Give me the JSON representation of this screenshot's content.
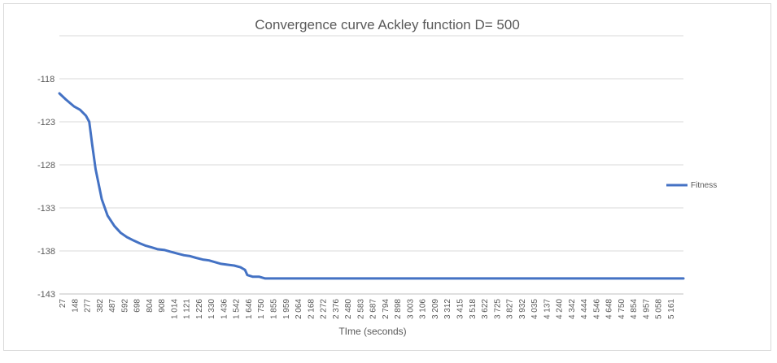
{
  "chart_data": {
    "type": "line",
    "title": "Convergence curve Ackley function D= 500",
    "xlabel": "TIme (seconds)",
    "ylabel": "",
    "ylim": [
      -143,
      -113
    ],
    "yticks": [
      -118,
      -123,
      -128,
      -133,
      -138,
      -143
    ],
    "ytick_labels": [
      "-118",
      "-123",
      "-128",
      "-133",
      "-138",
      "-143"
    ],
    "grid": true,
    "legend_position": "right",
    "x_ticks": [
      "27",
      "148",
      "277",
      "382",
      "487",
      "592",
      "698",
      "804",
      "908",
      "1 014",
      "1 121",
      "1 226",
      "1 330",
      "1 436",
      "1 542",
      "1 646",
      "1 750",
      "1 855",
      "1 959",
      "2 064",
      "2 168",
      "2 272",
      "2 376",
      "2 480",
      "2 583",
      "2 687",
      "2 794",
      "2 898",
      "3 003",
      "3 106",
      "3 209",
      "3 312",
      "3 415",
      "3 518",
      "3 622",
      "3 725",
      "3 827",
      "3 932",
      "4 035",
      "4 137",
      "4 240",
      "4 342",
      "4 444",
      "4 546",
      "4 648",
      "4 750",
      "4 854",
      "4 957",
      "5 058",
      "5 161"
    ],
    "series": [
      {
        "name": "Fitness",
        "color": "#4472c4",
        "x": [
          27,
          80,
          148,
          200,
          250,
          277,
          300,
          330,
          382,
          430,
          487,
          540,
          592,
          650,
          698,
          750,
          804,
          850,
          908,
          960,
          1014,
          1070,
          1121,
          1170,
          1226,
          1280,
          1330,
          1380,
          1436,
          1490,
          1542,
          1580,
          1600,
          1646,
          1700,
          1750,
          1855,
          2064,
          2480,
          3003,
          3518,
          4035,
          4546,
          5058,
          5250
        ],
        "y": [
          -119.7,
          -120.4,
          -121.2,
          -121.6,
          -122.3,
          -123.0,
          -125.5,
          -128.5,
          -132.0,
          -133.9,
          -135.1,
          -135.9,
          -136.4,
          -136.8,
          -137.1,
          -137.4,
          -137.6,
          -137.8,
          -137.9,
          -138.1,
          -138.3,
          -138.5,
          -138.6,
          -138.8,
          -139.0,
          -139.1,
          -139.3,
          -139.5,
          -139.6,
          -139.7,
          -139.9,
          -140.2,
          -140.8,
          -141.0,
          -141.0,
          -141.2,
          -141.2,
          -141.2,
          -141.2,
          -141.2,
          -141.2,
          -141.2,
          -141.2,
          -141.2,
          -141.2
        ]
      }
    ]
  }
}
